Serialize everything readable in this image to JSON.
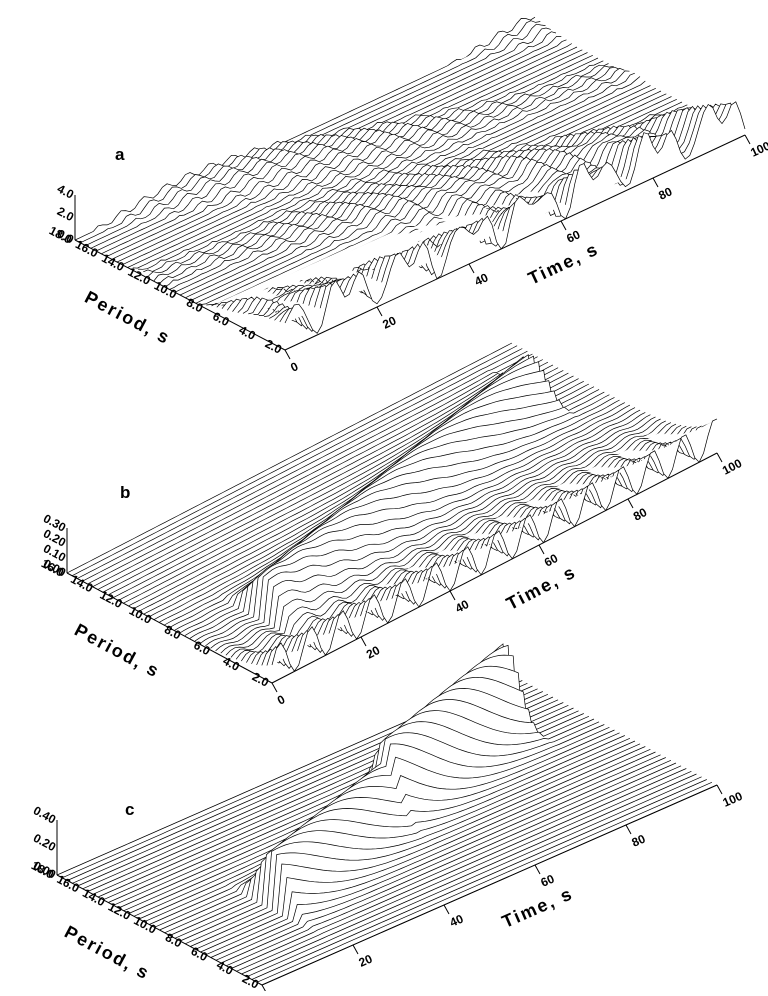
{
  "panels": [
    {
      "label": "a",
      "x_title": "Time, s",
      "y_title": "Period, s",
      "x_ticks": [
        "0",
        "20",
        "40",
        "60",
        "80",
        "100"
      ],
      "y_ticks": [
        "2.0",
        "4.0",
        "6.0",
        "8.0",
        "10.0",
        "12.0",
        "14.0",
        "16.0",
        "18.0"
      ],
      "z_ticks": [
        "0.0",
        "2.0",
        "4.0"
      ]
    },
    {
      "label": "b",
      "x_title": "Time, s",
      "y_title": "Period, s",
      "x_ticks": [
        "0",
        "20",
        "40",
        "60",
        "80",
        "100"
      ],
      "y_ticks": [
        "2.0",
        "4.0",
        "6.0",
        "8.0",
        "10.0",
        "12.0",
        "14.0",
        "16.0"
      ],
      "z_ticks": [
        "0.00",
        "0.10",
        "0.20",
        "0.30"
      ]
    },
    {
      "label": "c",
      "x_title": "Time, s",
      "y_title": "Period, s",
      "x_ticks": [
        "0",
        "20",
        "40",
        "60",
        "80",
        "100"
      ],
      "y_ticks": [
        "2.0",
        "4.0",
        "6.0",
        "8.0",
        "10.0",
        "12.0",
        "14.0",
        "16.0",
        "18.0"
      ],
      "z_ticks": [
        "0.00",
        "0.20",
        "0.40"
      ]
    }
  ]
}
